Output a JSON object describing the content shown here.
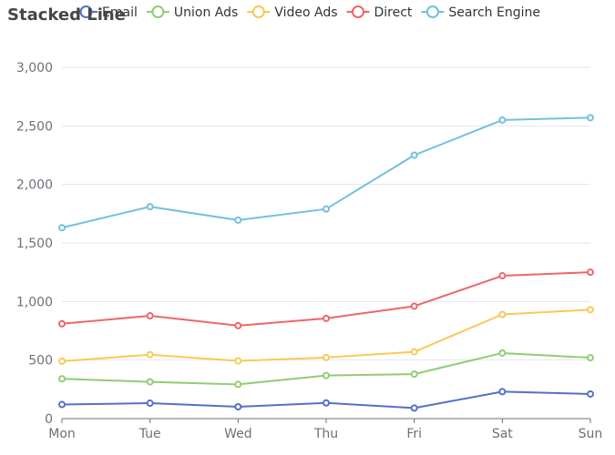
{
  "chart_data": {
    "type": "line",
    "title": "Stacked Line",
    "categories": [
      "Mon",
      "Tue",
      "Wed",
      "Thu",
      "Fri",
      "Sat",
      "Sun"
    ],
    "ylim": [
      0,
      3000
    ],
    "yticks": [
      0,
      500,
      1000,
      1500,
      2000,
      2500,
      3000
    ],
    "ytick_labels": [
      "0",
      "500",
      "1,000",
      "1,500",
      "2,000",
      "2,500",
      "3,000"
    ],
    "grid": true,
    "legend_position": "top",
    "stacked": true,
    "series": [
      {
        "name": "Email",
        "color": "#5470c6",
        "values": [
          120,
          132,
          101,
          134,
          90,
          230,
          210
        ]
      },
      {
        "name": "Union Ads",
        "color": "#91cc75",
        "values": [
          220,
          182,
          191,
          234,
          290,
          330,
          310
        ]
      },
      {
        "name": "Video Ads",
        "color": "#fac858",
        "values": [
          150,
          232,
          201,
          154,
          190,
          330,
          410
        ]
      },
      {
        "name": "Direct",
        "color": "#ee6666",
        "values": [
          320,
          332,
          301,
          334,
          390,
          330,
          320
        ]
      },
      {
        "name": "Search Engine",
        "color": "#73c0de",
        "values": [
          820,
          932,
          901,
          934,
          1290,
          1330,
          1320
        ]
      }
    ]
  }
}
